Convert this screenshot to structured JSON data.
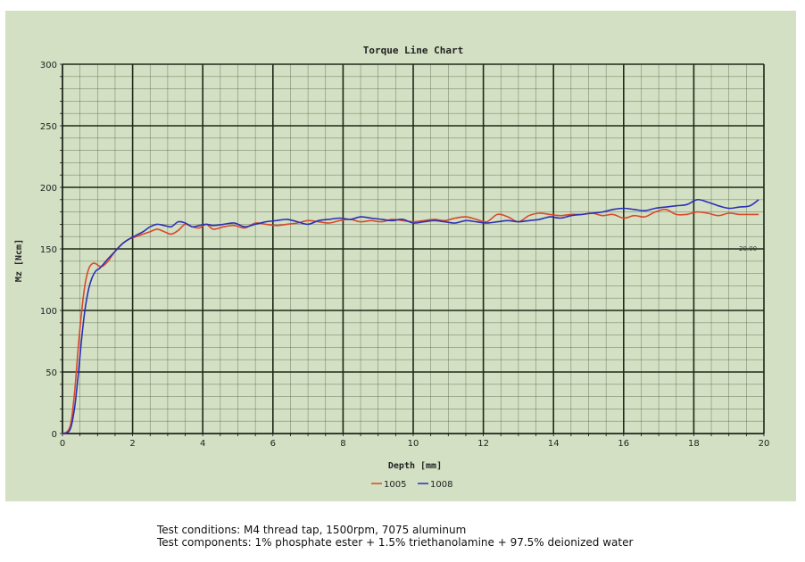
{
  "colors": {
    "panel_bg": "#d3e0c3",
    "major_grid": "#1c2a17",
    "minor_grid": "#3a4a33",
    "series_1005": "#d9482b",
    "series_1008": "#2b2fb5"
  },
  "chart_data": {
    "type": "line",
    "title": "Torque Line Chart",
    "xlabel": "Depth [mm]",
    "ylabel": "Mz [Ncm]",
    "xlim": [
      0,
      20
    ],
    "ylim": [
      0,
      300
    ],
    "xticks": [
      "0",
      "2",
      "4",
      "6",
      "8",
      "10",
      "12",
      "14",
      "16",
      "18",
      "20"
    ],
    "yticks": [
      "0",
      "50",
      "100",
      "150",
      "200",
      "250",
      "300"
    ],
    "grid": true,
    "legend_position": "bottom-center",
    "annotation": "20.00",
    "series": [
      {
        "name": "1005",
        "x": [
          0,
          0.15,
          0.25,
          0.35,
          0.45,
          0.55,
          0.65,
          0.75,
          0.85,
          0.95,
          1.05,
          1.15,
          1.3,
          1.5,
          1.7,
          1.9,
          2.1,
          2.3,
          2.5,
          2.7,
          2.9,
          3.1,
          3.3,
          3.5,
          3.7,
          3.9,
          4.1,
          4.3,
          4.6,
          4.9,
          5.2,
          5.5,
          5.8,
          6.1,
          6.4,
          6.7,
          7.0,
          7.3,
          7.6,
          7.9,
          8.2,
          8.5,
          8.8,
          9.1,
          9.4,
          9.7,
          10.0,
          10.3,
          10.6,
          10.9,
          11.2,
          11.5,
          11.8,
          12.1,
          12.4,
          12.7,
          13.0,
          13.3,
          13.6,
          13.9,
          14.2,
          14.5,
          14.8,
          15.1,
          15.4,
          15.7,
          16.0,
          16.3,
          16.6,
          16.9,
          17.2,
          17.5,
          17.8,
          18.1,
          18.4,
          18.7,
          19.0,
          19.3,
          19.6,
          19.85
        ],
        "y": [
          0,
          2,
          10,
          35,
          70,
          100,
          122,
          134,
          138,
          138,
          136,
          136,
          140,
          148,
          154,
          158,
          160,
          162,
          164,
          166,
          164,
          162,
          165,
          170,
          168,
          167,
          170,
          166,
          168,
          169,
          167,
          171,
          170,
          169,
          170,
          171,
          173,
          172,
          171,
          173,
          174,
          172,
          173,
          172,
          174,
          173,
          172,
          173,
          174,
          173,
          175,
          176,
          174,
          172,
          178,
          176,
          172,
          177,
          179,
          178,
          177,
          178,
          178,
          179,
          177,
          178,
          175,
          177,
          176,
          180,
          182,
          178,
          178,
          180,
          179,
          177,
          179,
          178,
          178,
          178
        ]
      },
      {
        "name": "1008",
        "x": [
          0,
          0.15,
          0.25,
          0.35,
          0.45,
          0.55,
          0.65,
          0.75,
          0.85,
          0.95,
          1.05,
          1.15,
          1.3,
          1.5,
          1.7,
          1.9,
          2.1,
          2.3,
          2.5,
          2.7,
          2.9,
          3.1,
          3.3,
          3.5,
          3.7,
          3.9,
          4.1,
          4.3,
          4.6,
          4.9,
          5.2,
          5.5,
          5.8,
          6.1,
          6.4,
          6.7,
          7.0,
          7.3,
          7.6,
          7.9,
          8.2,
          8.5,
          8.8,
          9.1,
          9.4,
          9.7,
          10.0,
          10.3,
          10.6,
          10.9,
          11.2,
          11.5,
          11.8,
          12.1,
          12.4,
          12.7,
          13.0,
          13.3,
          13.6,
          13.9,
          14.2,
          14.5,
          14.8,
          15.1,
          15.4,
          15.7,
          16.0,
          16.3,
          16.6,
          16.9,
          17.2,
          17.5,
          17.8,
          18.1,
          18.4,
          18.7,
          19.0,
          19.3,
          19.6,
          19.85
        ],
        "y": [
          0,
          1,
          6,
          22,
          48,
          78,
          102,
          118,
          127,
          132,
          134,
          137,
          142,
          148,
          154,
          158,
          161,
          164,
          168,
          170,
          169,
          168,
          172,
          171,
          168,
          169,
          170,
          169,
          170,
          171,
          168,
          170,
          172,
          173,
          174,
          172,
          170,
          173,
          174,
          175,
          174,
          176,
          175,
          174,
          173,
          174,
          171,
          172,
          173,
          172,
          171,
          173,
          172,
          171,
          172,
          173,
          172,
          173,
          174,
          176,
          175,
          177,
          178,
          179,
          180,
          182,
          183,
          182,
          181,
          183,
          184,
          185,
          186,
          190,
          188,
          185,
          183,
          184,
          185,
          190
        ]
      }
    ]
  },
  "caption": {
    "line1": "Test conditions: M4 thread tap, 1500rpm, 7075 aluminum",
    "line2": "Test components: 1% phosphate ester + 1.5% triethanolamine + 97.5% deionized water"
  }
}
